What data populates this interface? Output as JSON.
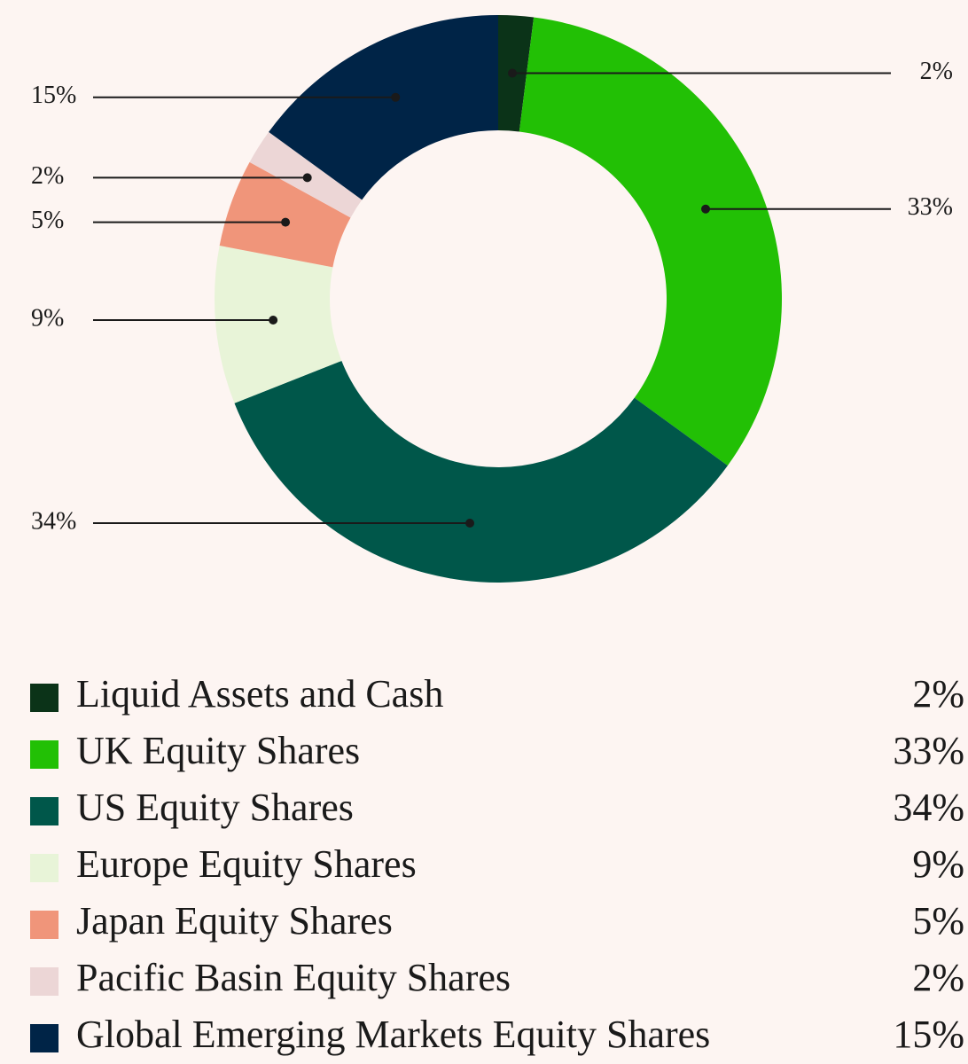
{
  "chart_data": {
    "type": "donut",
    "categories": [
      "Liquid Assets and Cash",
      "UK Equity Shares",
      "US Equity Shares",
      "Europe Equity Shares",
      "Japan Equity Shares",
      "Pacific Basin Equity Shares",
      "Global Emerging Markets Equity Shares"
    ],
    "values": [
      2,
      33,
      34,
      9,
      5,
      2,
      15
    ],
    "value_labels": [
      "2%",
      "33%",
      "34%",
      "9%",
      "5%",
      "2%",
      "15%"
    ],
    "colors": [
      "#0b3318",
      "#22c005",
      "#00574a",
      "#e8f4d8",
      "#f0957a",
      "#ecd6d6",
      "#002447"
    ],
    "legend": "bottom"
  }
}
